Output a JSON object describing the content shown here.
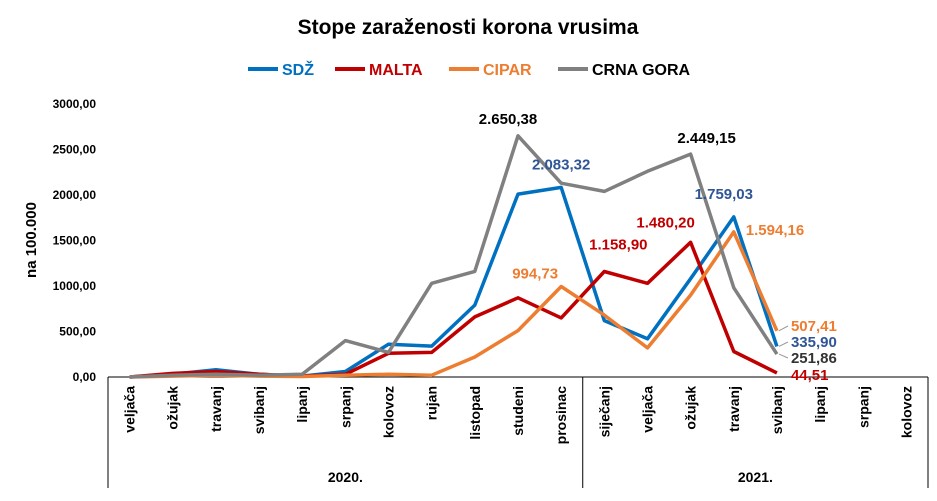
{
  "chart_data": {
    "type": "line",
    "title": "Stope zaraženosti korona vrusima",
    "ylabel": "na 100.000",
    "xlabel": "",
    "ylim": [
      0,
      3000
    ],
    "yticks": [
      "0,00",
      "500,00",
      "1000,00",
      "1500,00",
      "2000,00",
      "2500,00",
      "3000,00"
    ],
    "ytick_values": [
      0,
      500,
      1000,
      1500,
      2000,
      2500,
      3000
    ],
    "grid": false,
    "legend_position": "top",
    "categories": [
      "veljača",
      "ožujak",
      "travanj",
      "svibanj",
      "lipanj",
      "srpanj",
      "kolovoz",
      "rujan",
      "listopad",
      "studeni",
      "prosinac",
      "siječanj",
      "veljača",
      "ožujak",
      "travanj",
      "svibanj",
      "lipanj",
      "srpanj",
      "kolovoz"
    ],
    "groups": [
      {
        "label": "2020.",
        "count": 11
      },
      {
        "label": "2021.",
        "count": 8
      }
    ],
    "series": [
      {
        "name": "SDŽ",
        "color": "#0070C0",
        "label_color": "#2F5597",
        "values": [
          0,
          30,
          80,
          30,
          10,
          60,
          360,
          340,
          790,
          2010,
          2083.32,
          620,
          420,
          1080,
          1759.03,
          335.9,
          null,
          null,
          null
        ]
      },
      {
        "name": "MALTA",
        "color": "#C00000",
        "label_color": "#C00000",
        "values": [
          0,
          40,
          60,
          30,
          10,
          30,
          260,
          270,
          660,
          870,
          650,
          1158.9,
          1030,
          1480.2,
          280,
          44.51,
          null,
          null,
          null
        ]
      },
      {
        "name": "CIPAR",
        "color": "#ED7D31",
        "label_color": "#ED7D31",
        "values": [
          0,
          10,
          20,
          10,
          5,
          20,
          30,
          20,
          220,
          510,
          994.73,
          680,
          320,
          900,
          1594.16,
          507.41,
          null,
          null,
          null
        ]
      },
      {
        "name": "CRNA GORA",
        "color": "#808080",
        "label_color": "#000000",
        "values": [
          0,
          20,
          30,
          20,
          30,
          400,
          270,
          1030,
          1160,
          2650.38,
          2130,
          2040,
          2260,
          2449.15,
          980,
          251.86,
          null,
          null,
          null
        ]
      }
    ],
    "annotations": [
      {
        "series": 0,
        "index": 10,
        "text": "2.083,32"
      },
      {
        "series": 0,
        "index": 14,
        "text": "1.759,03"
      },
      {
        "series": 0,
        "index": 15,
        "text": "335,90"
      },
      {
        "series": 1,
        "index": 11,
        "text": "1.158,90"
      },
      {
        "series": 1,
        "index": 13,
        "text": "1.480,20"
      },
      {
        "series": 1,
        "index": 15,
        "text": "44,51"
      },
      {
        "series": 2,
        "index": 10,
        "text": "994,73"
      },
      {
        "series": 2,
        "index": 14,
        "text": "1.594,16"
      },
      {
        "series": 2,
        "index": 15,
        "text": "507,41"
      },
      {
        "series": 3,
        "index": 9,
        "text": "2.650,38"
      },
      {
        "series": 3,
        "index": 13,
        "text": "2.449,15"
      },
      {
        "series": 3,
        "index": 15,
        "text": "251,86"
      }
    ]
  }
}
